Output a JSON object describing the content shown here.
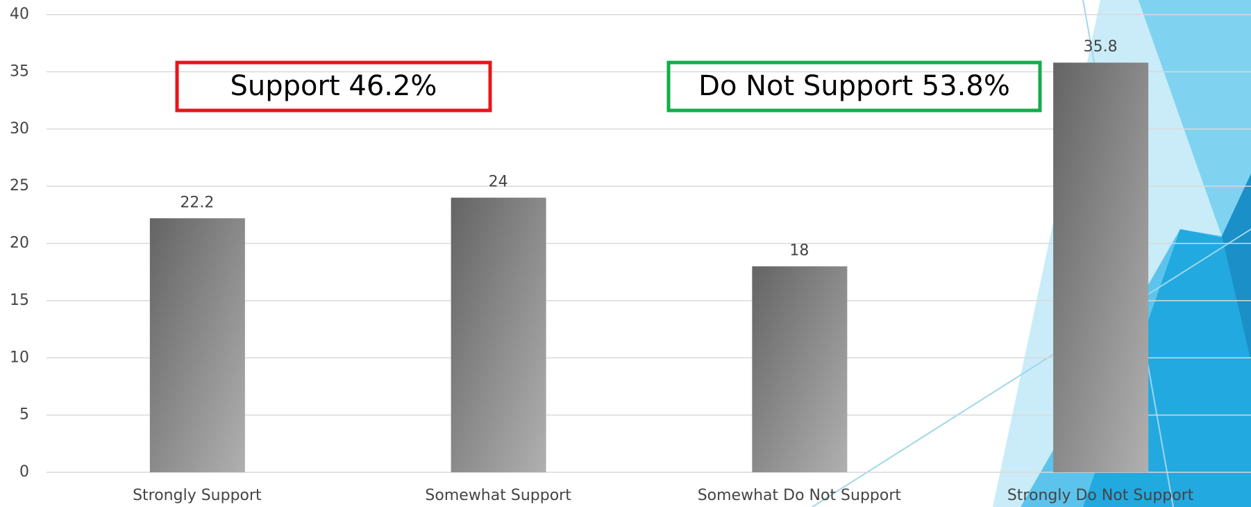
{
  "chart_data": {
    "type": "bar",
    "categories": [
      "Strongly Support",
      "Somewhat Support",
      "Somewhat Do Not Support",
      "Strongly Do Not Support"
    ],
    "values": [
      22.2,
      24,
      18,
      35.8
    ],
    "color": "#8a8a8a",
    "ylim": [
      0,
      40
    ],
    "yticks": [
      0,
      5,
      10,
      15,
      20,
      25,
      30,
      35,
      40
    ],
    "grid": true,
    "annotations": [
      {
        "text": "Support 46.2%",
        "color": "#e8141b"
      },
      {
        "text": "Do Not Support 53.8%",
        "color": "#12ad4b"
      }
    ]
  }
}
